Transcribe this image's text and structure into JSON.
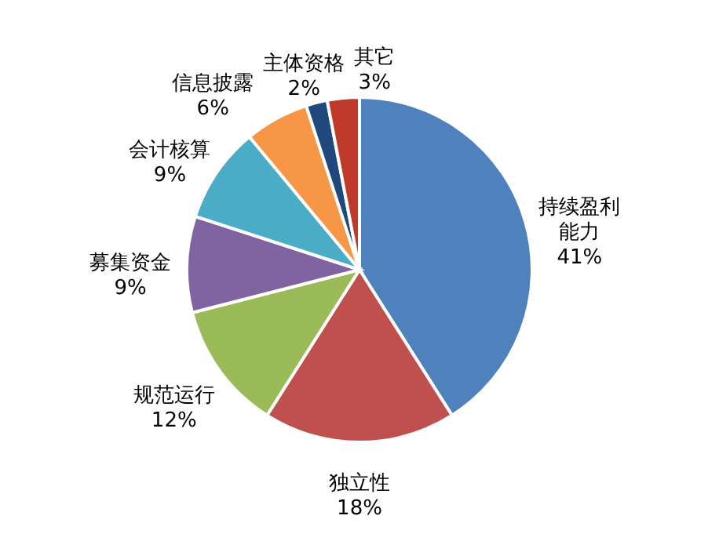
{
  "chart_data": {
    "type": "pie",
    "categories": [
      "持续盈利能力",
      "独立性",
      "规范运行",
      "募集资金",
      "会计核算",
      "信息披露",
      "主体资格",
      "其它"
    ],
    "values": [
      41,
      18,
      12,
      9,
      9,
      6,
      2,
      3
    ],
    "value_labels": [
      "41%",
      "18%",
      "12%",
      "9%",
      "9%",
      "6%",
      "2%",
      "3%"
    ],
    "colors": [
      "#4f81bd",
      "#c0504d",
      "#9bbb59",
      "#8064a2",
      "#4bacc6",
      "#f79646",
      "#1f497d",
      "#c0392b"
    ]
  }
}
